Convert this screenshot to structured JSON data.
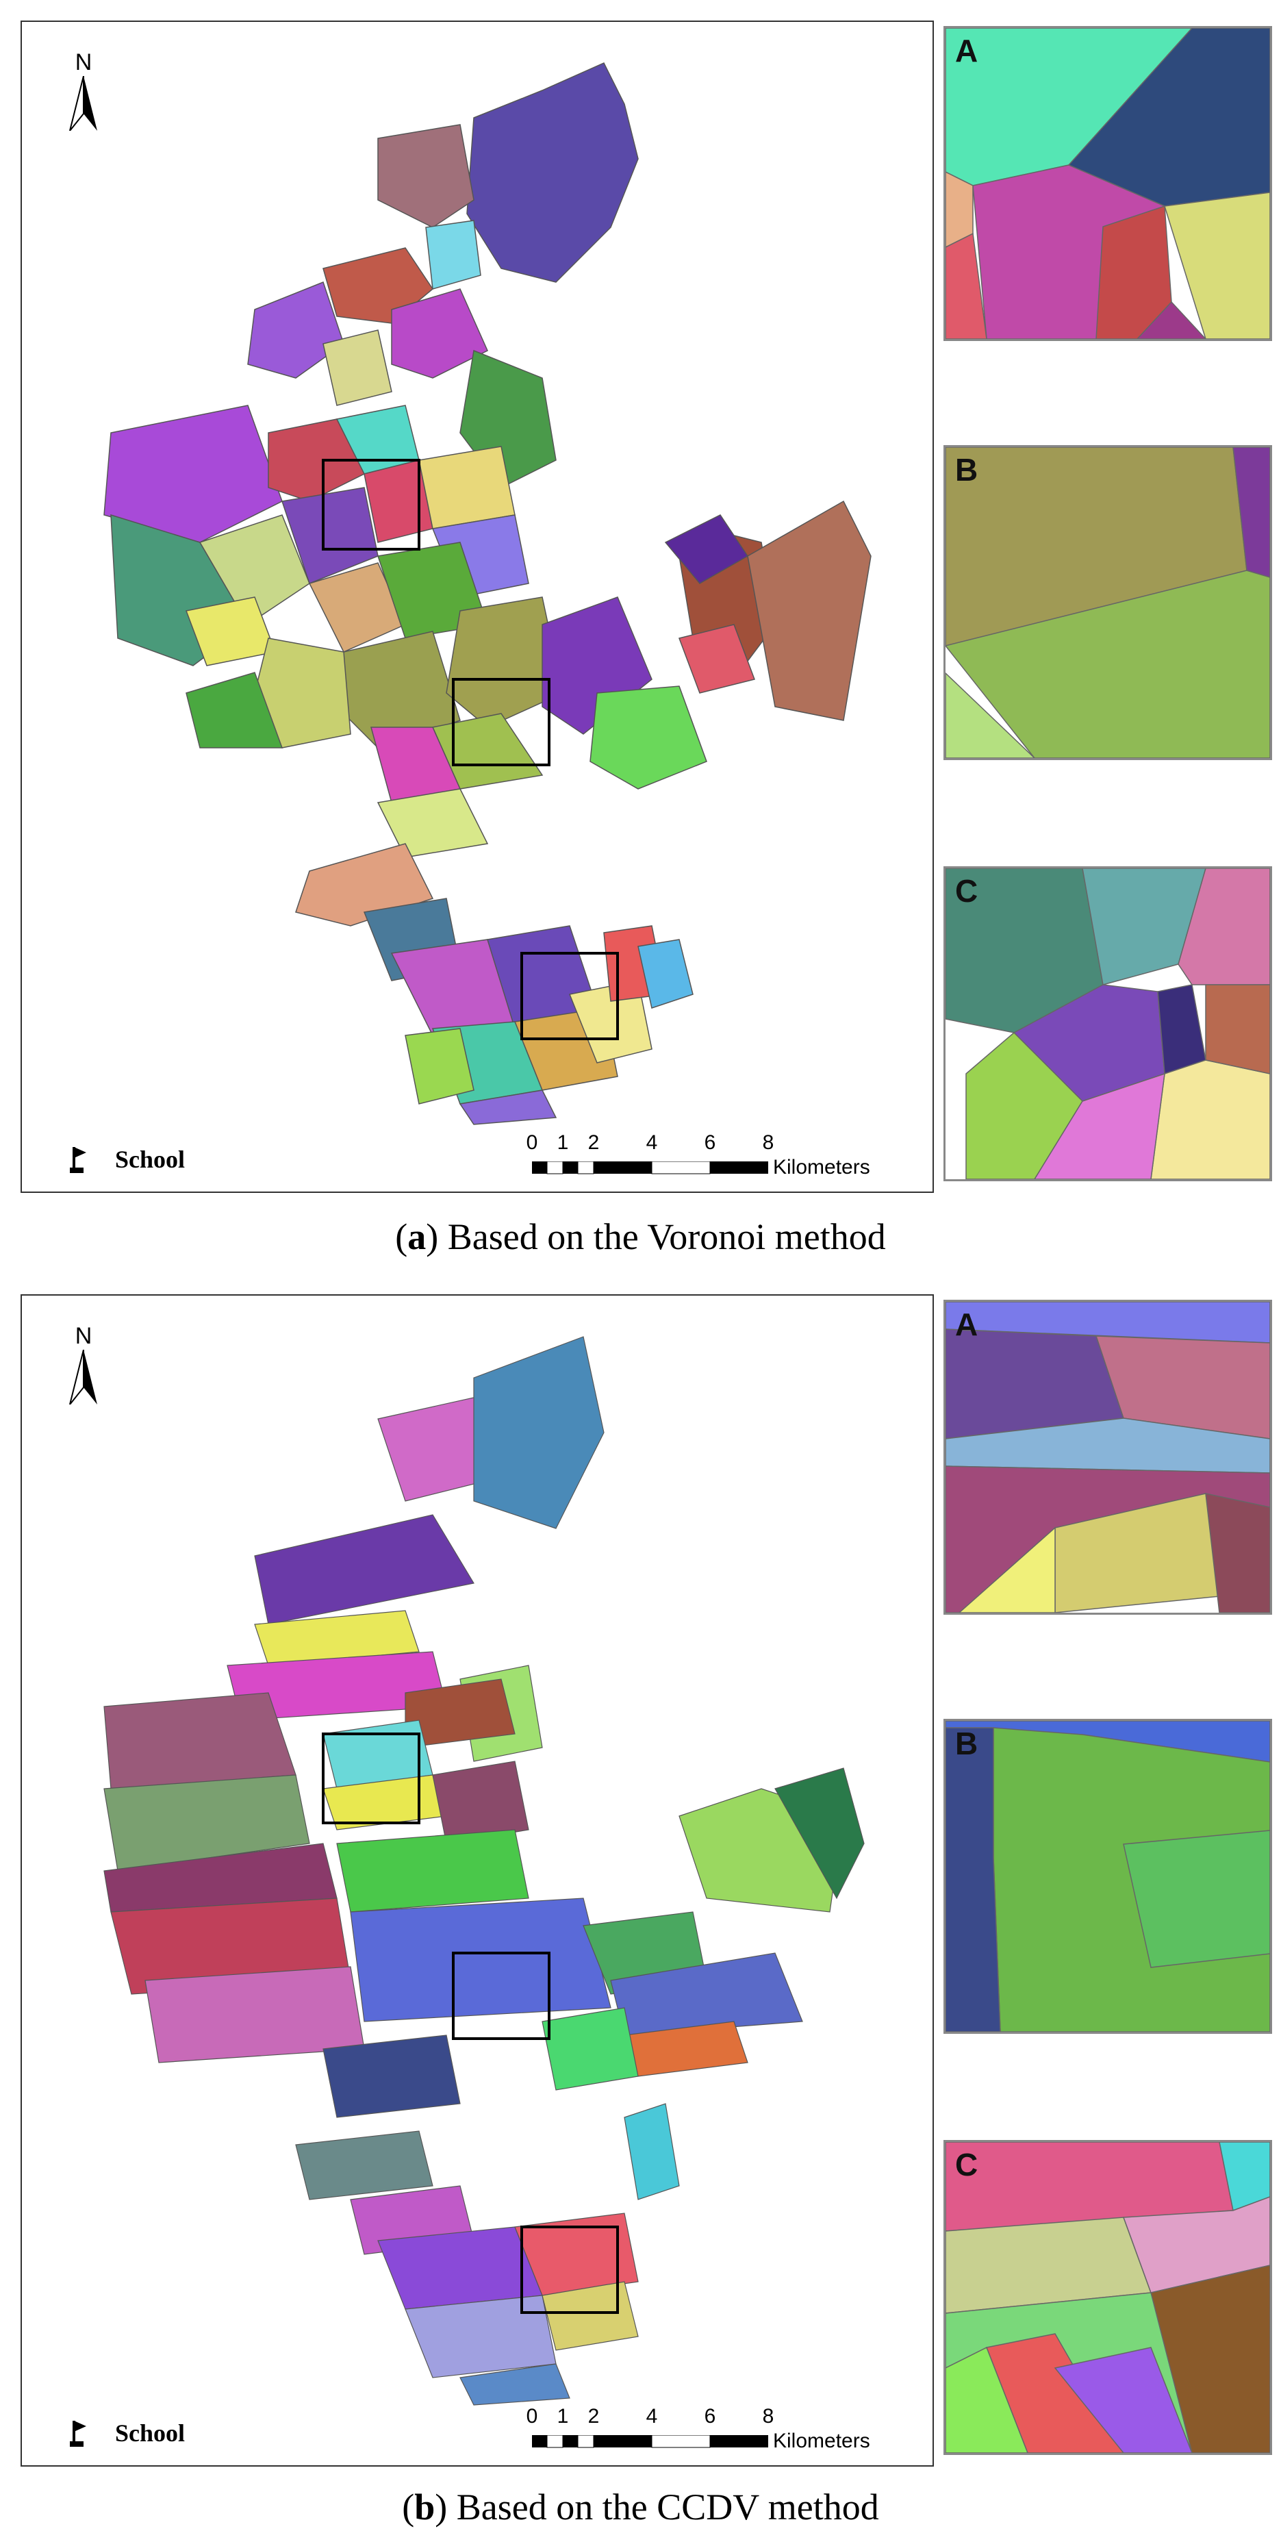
{
  "panels": [
    {
      "caption_prefix": "(",
      "caption_letter": "a",
      "caption_text": ") Based on the Voronoi method",
      "north_label": "N",
      "legend_label": "School",
      "scale": {
        "ticks": [
          "0",
          "1",
          "2",
          "4",
          "6",
          "8"
        ],
        "unit": "Kilometers"
      },
      "insets": [
        {
          "label": "A",
          "colors": [
            "#55e6b4",
            "#2e4a7c",
            "#c04aa8",
            "#d8dc7a",
            "#e05a6a",
            "#e8b088",
            "#c44a4a",
            "#9c3a8a"
          ]
        },
        {
          "label": "B",
          "colors": [
            "#a09a55",
            "#8fba55",
            "#7c3a9a",
            "#b4e080"
          ]
        },
        {
          "label": "C",
          "colors": [
            "#4a8a78",
            "#66aaaa",
            "#7a4ab8",
            "#3a2e7a",
            "#d478a8",
            "#9ad250",
            "#f4e89c",
            "#e078d8",
            "#b86a50"
          ]
        }
      ]
    },
    {
      "caption_prefix": "(",
      "caption_letter": "b",
      "caption_text": ") Based on the CCDV method",
      "north_label": "N",
      "legend_label": "School",
      "scale": {
        "ticks": [
          "0",
          "1",
          "2",
          "4",
          "6",
          "8"
        ],
        "unit": "Kilometers"
      },
      "insets": [
        {
          "label": "A",
          "colors": [
            "#6a4a9a",
            "#c0708a",
            "#88b4d8",
            "#a04a7a",
            "#d4cc70",
            "#8c4a5a",
            "#7a7aea",
            "#f0f07a"
          ]
        },
        {
          "label": "B",
          "colors": [
            "#6cb84a",
            "#3a4a8a",
            "#4a6ad8",
            "#5cc060"
          ]
        },
        {
          "label": "C",
          "colors": [
            "#e05a8a",
            "#c8d090",
            "#8a5a2a",
            "#e85a5a",
            "#9a5ae8",
            "#4ad8d8",
            "#7ad87a",
            "#e0a0c8",
            "#8aea5a"
          ]
        }
      ]
    }
  ]
}
